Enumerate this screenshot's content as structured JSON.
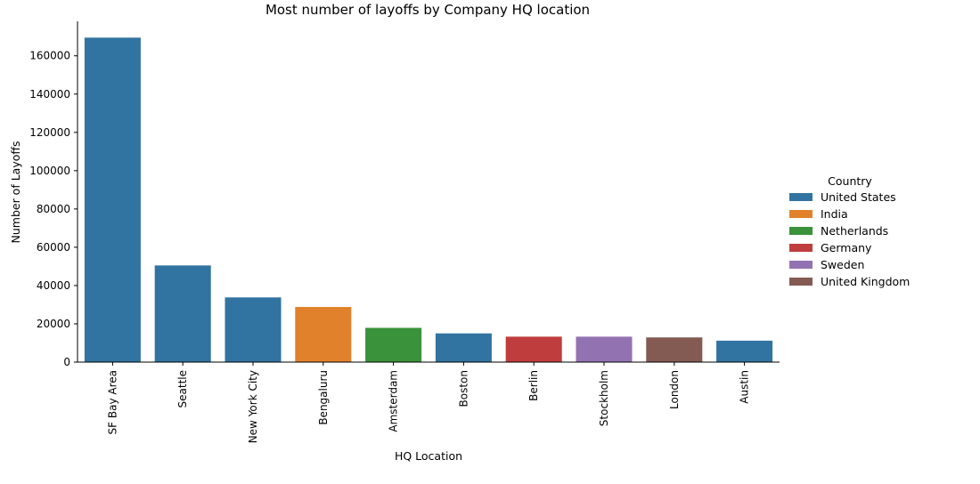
{
  "chart_data": {
    "type": "bar",
    "title": "Most number of layoffs by Company HQ location",
    "xlabel": "HQ Location",
    "ylabel": "Number of Layoffs",
    "categories": [
      "SF Bay Area",
      "Seattle",
      "New York City",
      "Bengaluru",
      "Amsterdam",
      "Boston",
      "Berlin",
      "Stockholm",
      "London",
      "Austin"
    ],
    "values": [
      169500,
      50500,
      33800,
      28800,
      17900,
      15000,
      13300,
      13300,
      12900,
      11200
    ],
    "country": [
      "United States",
      "United States",
      "United States",
      "India",
      "Netherlands",
      "United States",
      "Germany",
      "Sweden",
      "United Kingdom",
      "United States"
    ],
    "ylim": [
      0,
      178000
    ],
    "yticks": [
      0,
      20000,
      40000,
      60000,
      80000,
      100000,
      120000,
      140000,
      160000
    ],
    "grid": false,
    "legend": {
      "title": "Country",
      "placement": "right",
      "entries": [
        {
          "label": "United States",
          "color": "#3274a1"
        },
        {
          "label": "India",
          "color": "#e1812c"
        },
        {
          "label": "Netherlands",
          "color": "#3a923a"
        },
        {
          "label": "Germany",
          "color": "#c03d3e"
        },
        {
          "label": "Sweden",
          "color": "#9372b2"
        },
        {
          "label": "United Kingdom",
          "color": "#845b53"
        }
      ]
    }
  }
}
